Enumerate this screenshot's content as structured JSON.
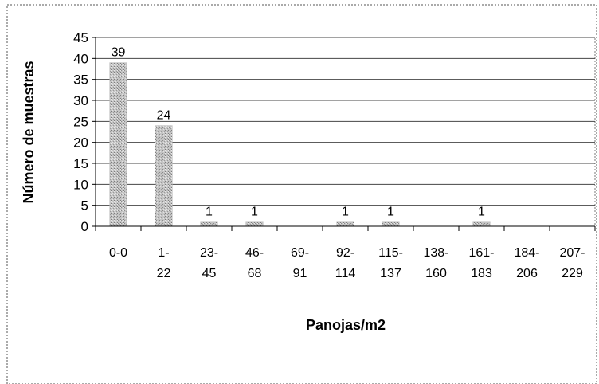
{
  "chart_data": {
    "type": "bar",
    "title": "",
    "xlabel": "Panojas/m2",
    "ylabel": "Número de muestras",
    "categories": [
      [
        "0-0"
      ],
      [
        "1-",
        "22"
      ],
      [
        "23-",
        "45"
      ],
      [
        "46-",
        "68"
      ],
      [
        "69-",
        "91"
      ],
      [
        "92-",
        "114"
      ],
      [
        "115-",
        "137"
      ],
      [
        "138-",
        "160"
      ],
      [
        "161-",
        "183"
      ],
      [
        "184-",
        "206"
      ],
      [
        "207-",
        "229"
      ]
    ],
    "values": [
      39,
      24,
      1,
      1,
      0,
      1,
      1,
      0,
      1,
      0,
      0
    ],
    "data_labels": [
      "39",
      "24",
      "1",
      "1",
      "",
      "1",
      "1",
      "",
      "1",
      "",
      ""
    ],
    "ylim": [
      0,
      45
    ],
    "yticks": [
      0,
      5,
      10,
      15,
      20,
      25,
      30,
      35,
      40,
      45
    ],
    "grid": true,
    "legend": "none",
    "bar_color": "#bdbdbd"
  }
}
